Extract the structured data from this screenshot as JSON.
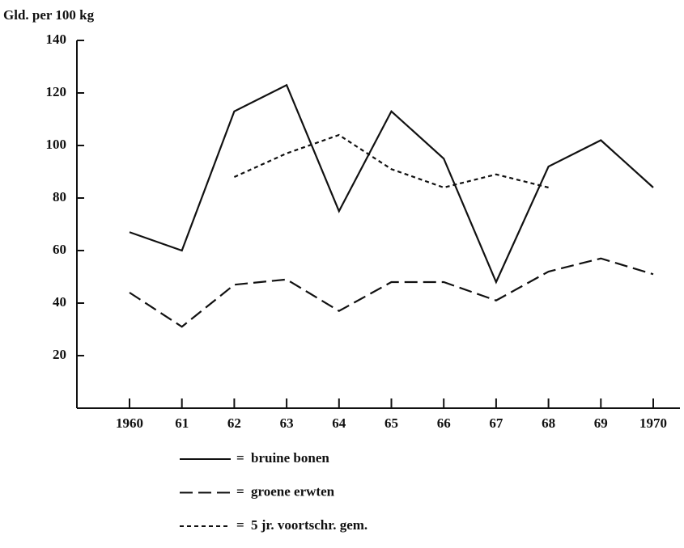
{
  "chart_data": {
    "type": "line",
    "y_label": "Gld. per 100 kg",
    "categories": [
      "1960",
      "61",
      "62",
      "63",
      "64",
      "65",
      "66",
      "67",
      "68",
      "69",
      "1970"
    ],
    "series": [
      {
        "name": "bruine bonen",
        "color": "#111111",
        "dash": "solid",
        "values": [
          67,
          60,
          113,
          123,
          75,
          113,
          95,
          48,
          92,
          102,
          84
        ]
      },
      {
        "name": "groene erwten",
        "color": "#111111",
        "dash": "dashed",
        "values": [
          44,
          31,
          47,
          49,
          37,
          48,
          48,
          41,
          52,
          57,
          51
        ]
      },
      {
        "name": "5 jr. voortschr. gem.",
        "color": "#111111",
        "dash": "dotted",
        "values": [
          null,
          null,
          88,
          97,
          104,
          91,
          84,
          89,
          84,
          null,
          null
        ]
      }
    ],
    "legend_marker": "=",
    "ylim": [
      0,
      140
    ],
    "yticks": [
      20,
      40,
      60,
      80,
      100,
      120,
      140
    ],
    "grid": false
  }
}
